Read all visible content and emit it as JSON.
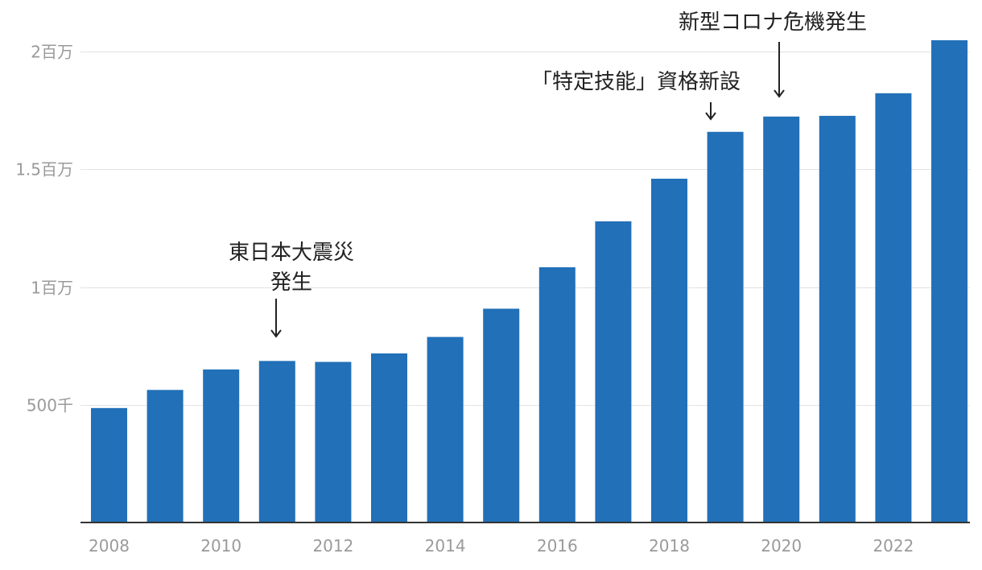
{
  "chart_data": {
    "type": "bar",
    "categories": [
      "2008",
      "2009",
      "2010",
      "2011",
      "2012",
      "2013",
      "2014",
      "2015",
      "2016",
      "2017",
      "2018",
      "2019",
      "2020",
      "2021",
      "2022",
      "2023"
    ],
    "values": [
      486000,
      563000,
      650000,
      686000,
      682000,
      718000,
      788000,
      908000,
      1084000,
      1279000,
      1460000,
      1659000,
      1724000,
      1727000,
      1823000,
      2048000
    ],
    "x_tick_labels": [
      "2008",
      "2010",
      "2012",
      "2014",
      "2016",
      "2018",
      "2020",
      "2022"
    ],
    "y_ticks": [
      {
        "value": 500000,
        "label": "500千"
      },
      {
        "value": 1000000,
        "label": "1百万"
      },
      {
        "value": 1500000,
        "label": "1.5百万"
      },
      {
        "value": 2000000,
        "label": "2百万"
      }
    ],
    "ylim": [
      0,
      2050000
    ],
    "title": "",
    "xlabel": "",
    "ylabel": "",
    "grid": true,
    "colors": {
      "bar": "#2170b8",
      "grid": "#e2e2e2",
      "axis": "#333333",
      "tick_text": "#9a9a9a",
      "annotation_text": "#222222"
    },
    "annotations": [
      {
        "year": "2011",
        "lines": [
          "東日本大震災",
          "発生"
        ],
        "arrow": "down"
      },
      {
        "year": "2019",
        "lines": [
          "「特定技能」資格新設"
        ],
        "arrow": "down"
      },
      {
        "year": "2020",
        "lines": [
          "新型コロナ危機発生"
        ],
        "arrow": "down"
      }
    ]
  }
}
